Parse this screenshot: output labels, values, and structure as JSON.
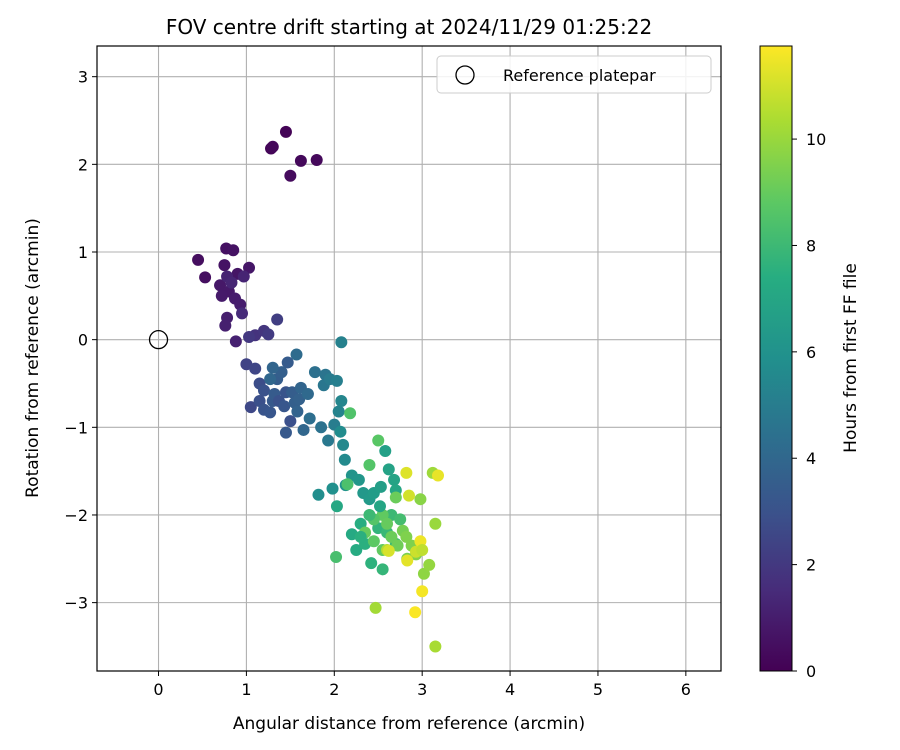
{
  "chart_data": {
    "type": "scatter",
    "title": "FOV centre drift starting at 2024/11/29 01:25:22",
    "xlabel": "Angular distance from reference (arcmin)",
    "ylabel": "Rotation from reference (arcmin)",
    "xlim": [
      -0.7,
      6.4
    ],
    "ylim": [
      -3.78,
      3.35
    ],
    "xticks": [
      0,
      1,
      2,
      3,
      4,
      5,
      6
    ],
    "yticks": [
      -3,
      -2,
      -1,
      0,
      1,
      2,
      3
    ],
    "xtick_labels": [
      "0",
      "1",
      "2",
      "3",
      "4",
      "5",
      "6"
    ],
    "ytick_labels": [
      "−3",
      "−2",
      "−1",
      "0",
      "1",
      "2",
      "3"
    ],
    "grid": true,
    "legend": {
      "position": "top-right",
      "label": "Reference platepar"
    },
    "reference_point": {
      "x": 0,
      "y": 0
    },
    "colorbar": {
      "label": "Hours from first FF file",
      "colormap": "viridis",
      "range": [
        0,
        11.75
      ],
      "ticks": [
        0,
        2,
        4,
        6,
        8,
        10
      ],
      "tick_labels": [
        "0",
        "2",
        "4",
        "6",
        "8",
        "10"
      ]
    },
    "points": [
      [
        1.45,
        2.37,
        0.1
      ],
      [
        1.28,
        2.18,
        0.15
      ],
      [
        1.3,
        2.2,
        0.2
      ],
      [
        1.62,
        2.04,
        0.25
      ],
      [
        1.8,
        2.05,
        0.3
      ],
      [
        1.5,
        1.87,
        0.35
      ],
      [
        0.45,
        0.91,
        0.45
      ],
      [
        0.53,
        0.71,
        0.5
      ],
      [
        0.77,
        1.04,
        0.55
      ],
      [
        0.85,
        1.02,
        0.6
      ],
      [
        0.75,
        0.85,
        0.65
      ],
      [
        0.9,
        0.75,
        0.7
      ],
      [
        1.03,
        0.82,
        0.75
      ],
      [
        0.7,
        0.62,
        0.8
      ],
      [
        0.8,
        0.55,
        0.85
      ],
      [
        0.72,
        0.5,
        0.9
      ],
      [
        0.87,
        0.47,
        0.95
      ],
      [
        0.93,
        0.4,
        1.0
      ],
      [
        0.78,
        0.25,
        1.05
      ],
      [
        0.76,
        0.16,
        1.1
      ],
      [
        0.88,
        -0.02,
        1.15
      ],
      [
        0.78,
        0.72,
        1.2
      ],
      [
        0.83,
        0.65,
        1.3
      ],
      [
        0.95,
        0.3,
        1.5
      ],
      [
        0.97,
        0.72,
        1.25
      ],
      [
        1.1,
        0.05,
        1.8
      ],
      [
        1.2,
        0.1,
        1.9
      ],
      [
        1.35,
        0.23,
        2.2
      ],
      [
        1.03,
        0.03,
        2.0
      ],
      [
        1.0,
        -0.28,
        2.4
      ],
      [
        1.1,
        -0.33,
        2.5
      ],
      [
        1.25,
        0.06,
        2.1
      ],
      [
        1.15,
        -0.5,
        2.8
      ],
      [
        1.2,
        -0.58,
        3.0
      ],
      [
        1.05,
        -0.77,
        2.6
      ],
      [
        1.15,
        -0.7,
        2.9
      ],
      [
        1.2,
        -0.8,
        3.1
      ],
      [
        1.27,
        -0.83,
        3.2
      ],
      [
        1.3,
        -0.7,
        3.3
      ],
      [
        1.32,
        -0.62,
        3.4
      ],
      [
        1.35,
        -0.45,
        3.5
      ],
      [
        1.4,
        -0.37,
        3.6
      ],
      [
        1.37,
        -0.7,
        3.0
      ],
      [
        1.43,
        -0.76,
        3.2
      ],
      [
        1.45,
        -0.6,
        3.1
      ],
      [
        1.5,
        -0.93,
        2.9
      ],
      [
        1.45,
        -1.06,
        3.3
      ],
      [
        1.47,
        -0.26,
        3.4
      ],
      [
        1.52,
        -0.6,
        3.5
      ],
      [
        1.55,
        -0.72,
        3.6
      ],
      [
        1.58,
        -0.82,
        3.8
      ],
      [
        1.6,
        -0.68,
        3.7
      ],
      [
        1.62,
        -0.55,
        3.9
      ],
      [
        1.65,
        -1.03,
        4.0
      ],
      [
        1.7,
        -0.62,
        4.1
      ],
      [
        1.57,
        -0.17,
        4.2
      ],
      [
        1.3,
        -0.32,
        3.9
      ],
      [
        1.27,
        -0.45,
        4.0
      ],
      [
        1.72,
        -0.9,
        4.3
      ],
      [
        1.78,
        -0.37,
        4.4
      ],
      [
        1.85,
        -1.0,
        4.5
      ],
      [
        1.9,
        -0.4,
        4.6
      ],
      [
        1.88,
        -0.52,
        4.7
      ],
      [
        1.93,
        -1.15,
        4.8
      ],
      [
        1.95,
        -0.45,
        4.9
      ],
      [
        2.0,
        -0.97,
        5.0
      ],
      [
        2.03,
        -0.47,
        5.1
      ],
      [
        2.08,
        -0.03,
        5.2
      ],
      [
        2.05,
        -0.82,
        5.3
      ],
      [
        2.08,
        -0.7,
        5.4
      ],
      [
        2.1,
        -1.2,
        5.5
      ],
      [
        2.12,
        -1.37,
        5.6
      ],
      [
        2.07,
        -1.05,
        5.7
      ],
      [
        1.82,
        -1.77,
        5.8
      ],
      [
        1.98,
        -1.7,
        5.9
      ],
      [
        2.13,
        -1.66,
        6.0
      ],
      [
        2.2,
        -1.55,
        6.1
      ],
      [
        2.28,
        -1.6,
        6.2
      ],
      [
        2.33,
        -1.75,
        6.3
      ],
      [
        2.4,
        -1.82,
        6.4
      ],
      [
        2.45,
        -1.75,
        6.5
      ],
      [
        2.53,
        -1.68,
        6.6
      ],
      [
        2.58,
        -1.27,
        6.7
      ],
      [
        2.62,
        -1.48,
        6.8
      ],
      [
        2.68,
        -1.6,
        6.9
      ],
      [
        2.7,
        -1.72,
        7.0
      ],
      [
        2.03,
        -1.9,
        7.1
      ],
      [
        2.2,
        -2.22,
        7.2
      ],
      [
        2.25,
        -2.4,
        7.3
      ],
      [
        2.3,
        -2.1,
        7.4
      ],
      [
        2.35,
        -2.33,
        7.5
      ],
      [
        2.42,
        -2.55,
        7.6
      ],
      [
        2.5,
        -2.15,
        7.7
      ],
      [
        2.55,
        -2.62,
        7.8
      ],
      [
        2.6,
        -2.2,
        7.9
      ],
      [
        2.65,
        -2.0,
        8.0
      ],
      [
        2.7,
        -2.33,
        8.1
      ],
      [
        2.75,
        -2.05,
        8.2
      ],
      [
        2.02,
        -2.48,
        8.3
      ],
      [
        2.15,
        -1.65,
        8.4
      ],
      [
        2.18,
        -0.84,
        8.5
      ],
      [
        2.4,
        -1.43,
        8.6
      ],
      [
        2.5,
        -1.15,
        8.7
      ],
      [
        2.45,
        -2.3,
        8.8
      ],
      [
        2.55,
        -2.0,
        8.9
      ],
      [
        2.6,
        -2.1,
        9.0
      ],
      [
        2.65,
        -2.25,
        9.1
      ],
      [
        2.72,
        -2.35,
        9.2
      ],
      [
        2.78,
        -2.18,
        9.3
      ],
      [
        2.83,
        -2.5,
        9.4
      ],
      [
        2.88,
        -2.35,
        9.5
      ],
      [
        2.93,
        -2.45,
        9.6
      ],
      [
        2.98,
        -1.82,
        9.7
      ],
      [
        3.02,
        -2.67,
        9.8
      ],
      [
        3.08,
        -2.57,
        9.9
      ],
      [
        3.15,
        -2.1,
        10.0
      ],
      [
        3.12,
        -1.52,
        10.1
      ],
      [
        2.47,
        -3.06,
        10.2
      ],
      [
        3.15,
        -3.5,
        10.3
      ],
      [
        2.35,
        -2.2,
        9.0
      ],
      [
        2.45,
        -2.05,
        8.6
      ],
      [
        2.55,
        -2.4,
        8.9
      ],
      [
        2.7,
        -1.8,
        9.1
      ],
      [
        2.82,
        -2.25,
        9.5
      ],
      [
        2.6,
        -2.4,
        10.5
      ],
      [
        2.82,
        -1.52,
        11.2
      ],
      [
        3.18,
        -1.55,
        11.4
      ],
      [
        2.85,
        -1.78,
        11.0
      ],
      [
        2.83,
        -2.52,
        11.3
      ],
      [
        2.93,
        -2.42,
        10.9
      ],
      [
        2.98,
        -2.3,
        11.5
      ],
      [
        3.0,
        -2.87,
        11.6
      ],
      [
        2.92,
        -3.11,
        11.7
      ],
      [
        2.62,
        -2.41,
        11.1
      ],
      [
        3.0,
        -2.4,
        10.7
      ],
      [
        2.4,
        -2.0,
        8.0
      ],
      [
        2.3,
        -2.25,
        7.5
      ],
      [
        2.52,
        -1.9,
        7.0
      ]
    ]
  }
}
